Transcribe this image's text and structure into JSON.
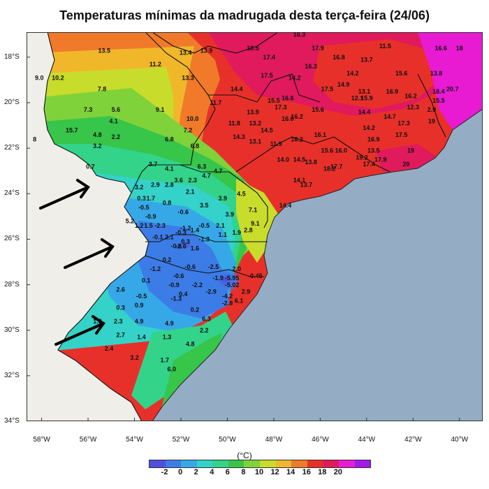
{
  "title": "Temperaturas mínimas da madrugada desta terça-feira (24/06)",
  "unit": "(°C)",
  "map": {
    "lat_labels": [
      "18°S",
      "20°S",
      "22°S",
      "24°S",
      "26°S",
      "28°S",
      "30°S",
      "32°S",
      "34°S"
    ],
    "lon_labels": [
      "58°W",
      "56°W",
      "54°W",
      "52°W",
      "50°W",
      "48°W",
      "46°W",
      "44°W",
      "42°W",
      "40°W"
    ],
    "ocean_color": "#95adc4",
    "land_color": "#efeee8"
  },
  "colorbar": {
    "ticks": [
      "-2",
      "0",
      "2",
      "4",
      "6",
      "8",
      "10",
      "12",
      "14",
      "16",
      "18",
      "20"
    ],
    "colors": [
      "#4f4fe0",
      "#3c7ce6",
      "#36a8e8",
      "#34d2c8",
      "#33d38a",
      "#37c54a",
      "#7fd23a",
      "#c8dc2c",
      "#f0b72a",
      "#f07a2a",
      "#e8302a",
      "#e01a5c",
      "#e81ad2",
      "#a01ae8"
    ]
  },
  "station_values": [
    {
      "v": "13.5",
      "lon": -55.3,
      "lat": -17.8
    },
    {
      "v": "11.2",
      "lon": -53.1,
      "lat": -18.4
    },
    {
      "v": "13.4",
      "lon": -51.8,
      "lat": -17.9
    },
    {
      "v": "13.9",
      "lon": -50.9,
      "lat": -17.8
    },
    {
      "v": "18.2",
      "lon": -47.9,
      "lat": -16.8
    },
    {
      "v": "19.1",
      "lon": -46.8,
      "lat": -16.7
    },
    {
      "v": "16.3",
      "lon": -46.9,
      "lat": -17.1
    },
    {
      "v": "18.5",
      "lon": -48.9,
      "lat": -17.7
    },
    {
      "v": "17.9",
      "lon": -46.1,
      "lat": -17.7
    },
    {
      "v": "11.5",
      "lon": -43.2,
      "lat": -17.6
    },
    {
      "v": "16.6",
      "lon": -40.8,
      "lat": -17.7
    },
    {
      "v": "18",
      "lon": -40.0,
      "lat": -17.7
    },
    {
      "v": "9.0",
      "lon": -58.1,
      "lat": -19.0
    },
    {
      "v": "10.2",
      "lon": -57.3,
      "lat": -19.0
    },
    {
      "v": "7.8",
      "lon": -55.4,
      "lat": -19.5
    },
    {
      "v": "13.3",
      "lon": -51.7,
      "lat": -19.0
    },
    {
      "v": "17.4",
      "lon": -48.2,
      "lat": -18.1
    },
    {
      "v": "16.8",
      "lon": -45.2,
      "lat": -18.1
    },
    {
      "v": "16.3",
      "lon": -46.4,
      "lat": -18.5
    },
    {
      "v": "13.7",
      "lon": -44.0,
      "lat": -18.2
    },
    {
      "v": "17.5",
      "lon": -48.3,
      "lat": -18.9
    },
    {
      "v": "14.2",
      "lon": -47.1,
      "lat": -19.0
    },
    {
      "v": "14.2",
      "lon": -44.6,
      "lat": -18.8
    },
    {
      "v": "15.6",
      "lon": -42.5,
      "lat": -18.8
    },
    {
      "v": "13.8",
      "lon": -41.0,
      "lat": -18.8
    },
    {
      "v": "14.4",
      "lon": -49.6,
      "lat": -19.5
    },
    {
      "v": "17.5",
      "lon": -45.7,
      "lat": -19.5
    },
    {
      "v": "14.9",
      "lon": -45.0,
      "lat": -19.3
    },
    {
      "v": "13.1",
      "lon": -44.1,
      "lat": -19.6
    },
    {
      "v": "16.9",
      "lon": -42.9,
      "lat": -19.6
    },
    {
      "v": "16.2",
      "lon": -42.1,
      "lat": -19.8
    },
    {
      "v": "18.4",
      "lon": -40.9,
      "lat": -19.6
    },
    {
      "v": "20.7",
      "lon": -40.3,
      "lat": -19.5
    },
    {
      "v": "15.5",
      "lon": -48.0,
      "lat": -20.0
    },
    {
      "v": "16.6",
      "lon": -47.4,
      "lat": -19.9
    },
    {
      "v": "17.3",
      "lon": -47.7,
      "lat": -20.3
    },
    {
      "v": "12.1",
      "lon": -44.4,
      "lat": -19.9
    },
    {
      "v": "15.9",
      "lon": -44.0,
      "lat": -19.9
    },
    {
      "v": "15.5",
      "lon": -40.9,
      "lat": -20.0
    },
    {
      "v": "7.3",
      "lon": -56.0,
      "lat": -20.4
    },
    {
      "v": "5.6",
      "lon": -54.8,
      "lat": -20.4
    },
    {
      "v": "9.1",
      "lon": -52.9,
      "lat": -20.4
    },
    {
      "v": "11.7",
      "lon": -50.5,
      "lat": -20.1
    },
    {
      "v": "13.9",
      "lon": -48.9,
      "lat": -20.5
    },
    {
      "v": "12.3",
      "lon": -42.0,
      "lat": -20.3
    },
    {
      "v": "2.9",
      "lon": -41.2,
      "lat": -20.4
    },
    {
      "v": "10.0",
      "lon": -51.5,
      "lat": -20.8
    },
    {
      "v": "11.8",
      "lon": -49.7,
      "lat": -21.0
    },
    {
      "v": "13.2",
      "lon": -48.8,
      "lat": -21.0
    },
    {
      "v": "16.2",
      "lon": -47.0,
      "lat": -20.7
    },
    {
      "v": "15.6",
      "lon": -46.1,
      "lat": -20.4
    },
    {
      "v": "14.4",
      "lon": -44.1,
      "lat": -20.5
    },
    {
      "v": "14.7",
      "lon": -43.0,
      "lat": -20.7
    },
    {
      "v": "4.1",
      "lon": -54.9,
      "lat": -20.9
    },
    {
      "v": "16.0",
      "lon": -47.4,
      "lat": -20.8
    },
    {
      "v": "17.3",
      "lon": -42.4,
      "lat": -21.0
    },
    {
      "v": "19",
      "lon": -41.2,
      "lat": -20.9
    },
    {
      "v": "15.7",
      "lon": -56.7,
      "lat": -21.3
    },
    {
      "v": "4.8",
      "lon": -55.6,
      "lat": -21.5
    },
    {
      "v": "2.2",
      "lon": -54.8,
      "lat": -21.6
    },
    {
      "v": "7.2",
      "lon": -51.7,
      "lat": -21.3
    },
    {
      "v": "14.5",
      "lon": -48.3,
      "lat": -21.3
    },
    {
      "v": "14.2",
      "lon": -43.9,
      "lat": -21.2
    },
    {
      "v": "8",
      "lon": -58.3,
      "lat": -21.7
    },
    {
      "v": "6.8",
      "lon": -52.5,
      "lat": -21.7
    },
    {
      "v": "14.3",
      "lon": -49.5,
      "lat": -21.6
    },
    {
      "v": "13.1",
      "lon": -48.8,
      "lat": -21.8
    },
    {
      "v": "11.9",
      "lon": -47.9,
      "lat": -21.9
    },
    {
      "v": "16.2",
      "lon": -47.0,
      "lat": -21.7
    },
    {
      "v": "16.1",
      "lon": -46.0,
      "lat": -21.5
    },
    {
      "v": "16.9",
      "lon": -43.7,
      "lat": -21.7
    },
    {
      "v": "17.5",
      "lon": -42.5,
      "lat": -21.5
    },
    {
      "v": "3.2",
      "lon": -55.6,
      "lat": -22.0
    },
    {
      "v": "6.8",
      "lon": -51.4,
      "lat": -22.0
    },
    {
      "v": "15.6",
      "lon": -45.7,
      "lat": -22.2
    },
    {
      "v": "16.0",
      "lon": -45.1,
      "lat": -22.2
    },
    {
      "v": "13.5",
      "lon": -43.7,
      "lat": -22.2
    },
    {
      "v": "19",
      "lon": -42.1,
      "lat": -22.2
    },
    {
      "v": "14.0",
      "lon": -47.6,
      "lat": -22.6
    },
    {
      "v": "14.5",
      "lon": -46.9,
      "lat": -22.6
    },
    {
      "v": "13.8",
      "lon": -46.4,
      "lat": -22.7
    },
    {
      "v": "17.7",
      "lon": -45.3,
      "lat": -22.9
    },
    {
      "v": "18.2",
      "lon": -45.6,
      "lat": -23.0
    },
    {
      "v": "19.2",
      "lon": -44.2,
      "lat": -22.5
    },
    {
      "v": "17.9",
      "lon": -43.4,
      "lat": -22.6
    },
    {
      "v": "17.4",
      "lon": -43.9,
      "lat": -22.8
    },
    {
      "v": "20",
      "lon": -42.3,
      "lat": -22.8
    },
    {
      "v": "0.7",
      "lon": -55.9,
      "lat": -22.9
    },
    {
      "v": "3.7",
      "lon": -53.2,
      "lat": -22.8
    },
    {
      "v": "4.1",
      "lon": -52.5,
      "lat": -23.0
    },
    {
      "v": "6.3",
      "lon": -51.1,
      "lat": -22.9
    },
    {
      "v": "4.7",
      "lon": -50.4,
      "lat": -23.1
    },
    {
      "v": "3.6",
      "lon": -52.1,
      "lat": -23.5
    },
    {
      "v": "2.3",
      "lon": -51.5,
      "lat": -23.5
    },
    {
      "v": "4.7",
      "lon": -50.9,
      "lat": -23.3
    },
    {
      "v": "14.1",
      "lon": -46.9,
      "lat": -23.5
    },
    {
      "v": "13.7",
      "lon": -46.6,
      "lat": -23.7
    },
    {
      "v": "3.2",
      "lon": -53.8,
      "lat": -23.8
    },
    {
      "v": "2.9",
      "lon": -53.1,
      "lat": -23.7
    },
    {
      "v": "2.8",
      "lon": -52.5,
      "lat": -23.7
    },
    {
      "v": "2.1",
      "lon": -51.6,
      "lat": -24.0
    },
    {
      "v": "4.5",
      "lon": -49.4,
      "lat": -24.1
    },
    {
      "v": "0.3",
      "lon": -53.7,
      "lat": -24.3
    },
    {
      "v": "1.7",
      "lon": -53.3,
      "lat": -24.3
    },
    {
      "v": "0.8",
      "lon": -52.6,
      "lat": -24.5
    },
    {
      "v": "3.9",
      "lon": -50.2,
      "lat": -24.3
    },
    {
      "v": "-0.5",
      "lon": -53.6,
      "lat": -24.7
    },
    {
      "v": "3.5",
      "lon": -51.0,
      "lat": -24.6
    },
    {
      "v": "14.4",
      "lon": -47.5,
      "lat": -24.6
    },
    {
      "v": "-0.6",
      "lon": -51.9,
      "lat": -24.9
    },
    {
      "v": "3.9",
      "lon": -49.9,
      "lat": -25.0
    },
    {
      "v": "7.1",
      "lon": -48.9,
      "lat": -24.8
    },
    {
      "v": "-0.9",
      "lon": -53.3,
      "lat": -25.1
    },
    {
      "v": "5.2",
      "lon": -54.2,
      "lat": -25.3
    },
    {
      "v": "-1.2",
      "lon": -51.8,
      "lat": -25.6
    },
    {
      "v": "-0.5",
      "lon": -51.0,
      "lat": -25.5
    },
    {
      "v": "2.1",
      "lon": -50.3,
      "lat": -25.5
    },
    {
      "v": "9.1",
      "lon": -48.8,
      "lat": -25.4
    },
    {
      "v": "1.2",
      "lon": -53.8,
      "lat": -25.5
    },
    {
      "v": "1.5",
      "lon": -53.4,
      "lat": -25.5
    },
    {
      "v": "-2.3",
      "lon": -52.9,
      "lat": -25.5
    },
    {
      "v": "-0.3",
      "lon": -52.0,
      "lat": -25.8
    },
    {
      "v": "1.4",
      "lon": -51.4,
      "lat": -25.7
    },
    {
      "v": "1.9",
      "lon": -49.6,
      "lat": -25.8
    },
    {
      "v": "2.8",
      "lon": -49.1,
      "lat": -25.7
    },
    {
      "v": "1.1",
      "lon": -50.2,
      "lat": -25.9
    },
    {
      "v": "-0.1",
      "lon": -53.0,
      "lat": -26.0
    },
    {
      "v": "2.1",
      "lon": -52.5,
      "lat": -26.0
    },
    {
      "v": "0.3",
      "lon": -51.8,
      "lat": -26.2
    },
    {
      "v": "-1.3",
      "lon": -51.0,
      "lat": -26.1
    },
    {
      "v": "-0.6",
      "lon": -52.2,
      "lat": -26.4
    },
    {
      "v": "-2.6",
      "lon": -52.0,
      "lat": -26.4
    },
    {
      "v": "1.6",
      "lon": -51.4,
      "lat": -26.5
    },
    {
      "v": "0.2",
      "lon": -52.6,
      "lat": -27.0
    },
    {
      "v": "-2.5",
      "lon": -50.6,
      "lat": -27.3
    },
    {
      "v": "-0.6",
      "lon": -51.6,
      "lat": -27.3
    },
    {
      "v": "2.0",
      "lon": -49.6,
      "lat": -27.4
    },
    {
      "v": "-1.2",
      "lon": -53.1,
      "lat": -27.4
    },
    {
      "v": "-0.6",
      "lon": -52.1,
      "lat": -27.7
    },
    {
      "v": "-1.9",
      "lon": -50.4,
      "lat": -27.8
    },
    {
      "v": "-5.95",
      "lon": -49.8,
      "lat": -27.8
    },
    {
      "v": "-0.45",
      "lon": -48.8,
      "lat": -27.7
    },
    {
      "v": "0.1",
      "lon": -53.5,
      "lat": -27.9
    },
    {
      "v": "-0.9",
      "lon": -52.3,
      "lat": -28.1
    },
    {
      "v": "-2.2",
      "lon": -51.3,
      "lat": -28.1
    },
    {
      "v": "-5.02",
      "lon": -49.8,
      "lat": -28.1
    },
    {
      "v": "2.6",
      "lon": -54.6,
      "lat": -28.3
    },
    {
      "v": "-2.9",
      "lon": -50.7,
      "lat": -28.4
    },
    {
      "v": "2.9",
      "lon": -49.2,
      "lat": -28.4
    },
    {
      "v": "-0.5",
      "lon": -53.7,
      "lat": -28.6
    },
    {
      "v": "-1.3",
      "lon": -52.2,
      "lat": -28.7
    },
    {
      "v": "0.4",
      "lon": -51.9,
      "lat": -28.5
    },
    {
      "v": "-4.2",
      "lon": -50.0,
      "lat": -28.6
    },
    {
      "v": "6.1",
      "lon": -49.5,
      "lat": -28.8
    },
    {
      "v": "0.3",
      "lon": -54.6,
      "lat": -29.1
    },
    {
      "v": "0.9",
      "lon": -53.8,
      "lat": -29.0
    },
    {
      "v": "0.2",
      "lon": -51.4,
      "lat": -29.2
    },
    {
      "v": "-2.8",
      "lon": -50.0,
      "lat": -28.9
    },
    {
      "v": "1.8",
      "lon": -55.6,
      "lat": -29.7
    },
    {
      "v": "2.3",
      "lon": -54.7,
      "lat": -29.7
    },
    {
      "v": "4.9",
      "lon": -53.8,
      "lat": -29.7
    },
    {
      "v": "4.9",
      "lon": -52.5,
      "lat": -29.8
    },
    {
      "v": "6.3",
      "lon": -50.9,
      "lat": -29.6
    },
    {
      "v": "2.7",
      "lon": -54.6,
      "lat": -30.3
    },
    {
      "v": "1.4",
      "lon": -53.7,
      "lat": -30.4
    },
    {
      "v": "1.3",
      "lon": -52.6,
      "lat": -30.4
    },
    {
      "v": "2.2",
      "lon": -51.0,
      "lat": -30.1
    },
    {
      "v": "2.4",
      "lon": -55.1,
      "lat": -30.9
    },
    {
      "v": "4.8",
      "lon": -51.6,
      "lat": -30.7
    },
    {
      "v": "3.2",
      "lon": -54.0,
      "lat": -31.3
    },
    {
      "v": "1.7",
      "lon": -52.7,
      "lat": -31.4
    },
    {
      "v": "6.0",
      "lon": -52.4,
      "lat": -31.8
    }
  ]
}
